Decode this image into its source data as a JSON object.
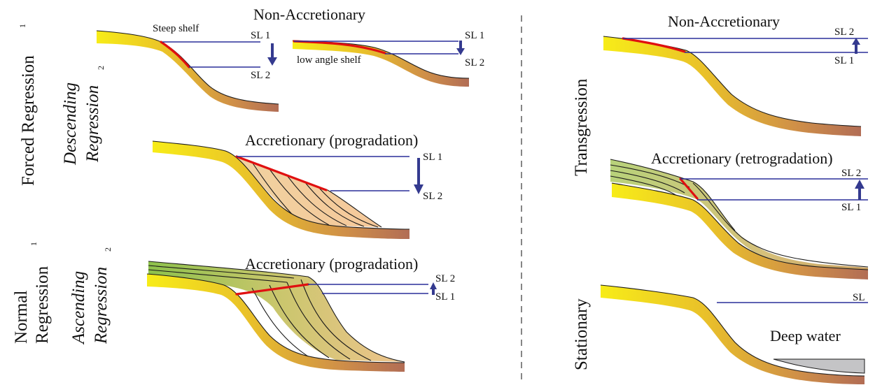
{
  "left_labels": {
    "forced_regression": "Forced Regression",
    "forced_sup": "1",
    "descending_1": "Descending",
    "descending_2": "Regression",
    "descending_sup": "2",
    "normal_1": "Normal",
    "normal_2": "Regression",
    "normal_sup": "1",
    "ascending_1": "Ascending",
    "ascending_2": "Regression",
    "ascending_sup": "2"
  },
  "right_labels": {
    "transgression": "Transgression",
    "stationary": "Stationary"
  },
  "panels": {
    "non_accretionary_left": {
      "title": "Non-Accretionary",
      "steep_label": "Steep shelf",
      "low_label": "low angle shelf",
      "sl1": "SL 1",
      "sl2": "SL 2",
      "sl1b": "SL 1",
      "sl2b": "SL 2"
    },
    "accretionary_descending": {
      "title": "Accretionary (progradation)",
      "sl1": "SL 1",
      "sl2": "SL 2"
    },
    "accretionary_ascending": {
      "title": "Accretionary (progradation)",
      "sl2": "SL 2",
      "sl1": "SL 1"
    },
    "non_accretionary_right": {
      "title": "Non-Accretionary",
      "sl2": "SL 2",
      "sl1": "SL 1"
    },
    "accretionary_retro": {
      "title": "Accretionary (retrogradation)",
      "sl2": "SL 2",
      "sl1": "SL 1"
    },
    "stationary": {
      "sl": "SL",
      "deep_water": "Deep water"
    }
  },
  "colors": {
    "sea_level_line": "#2a2f9a",
    "shoreline_trajectory": "#e01010",
    "arrow": "#343a8f",
    "prograding_wedge": "#f3c999",
    "aggrading_top": "#9cc05a",
    "deep_water": "#c4c4c6",
    "divider": "#444444"
  }
}
